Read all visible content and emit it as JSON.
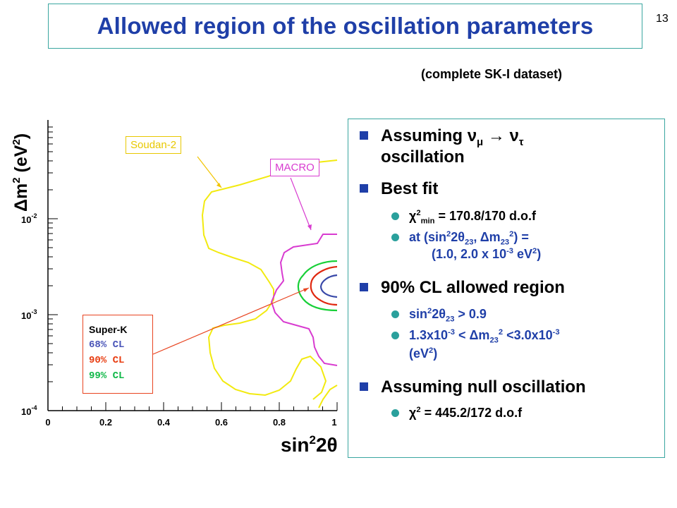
{
  "slide_number": "13",
  "title": "Allowed region of the oscillation parameters",
  "subtitle": "(complete SK-I dataset)",
  "plot": {
    "x_axis_title": "sin",
    "x_axis_title_sup": "2",
    "x_axis_title_rest": "2θ",
    "y_axis_title": "Δm",
    "y_axis_title_sup": "2",
    "y_axis_title_rest": " (eV",
    "y_axis_title_sup2": "2",
    "y_axis_title_end": ")",
    "x_ticks": [
      "0",
      "0.2",
      "0.4",
      "0.6",
      "0.8",
      "1"
    ],
    "y_ticks": [
      {
        "base": "10",
        "exp": "-2"
      },
      {
        "base": "10",
        "exp": "-3"
      },
      {
        "base": "10",
        "exp": "-4"
      }
    ],
    "callouts": {
      "soudan": "Soudan-2",
      "macro": "MACRO"
    },
    "legend": {
      "header": "Super-K",
      "items": [
        "68% CL",
        "90% CL",
        "99% CL"
      ]
    },
    "colors": {
      "soudan": "#f2ea10",
      "macro": "#d83bd0",
      "cl68": "#3848a8",
      "cl90": "#e02810",
      "cl99": "#18d038"
    },
    "log_y": true
  },
  "panel": {
    "b1_a": "Assuming ",
    "b1_nu1": "ν",
    "b1_mu": "μ",
    "b1_arrow": " → ",
    "b1_nu2": "ν",
    "b1_tau": "τ",
    "b1_b": "oscillation",
    "b2": "Best fit",
    "s1_chi": "χ",
    "s1_sup": "2",
    "s1_sub": "min",
    "s1_rest": " = 170.8/170 d.o.f",
    "s2_a": "at (sin",
    "s2_sup1": "2",
    "s2_b": "2θ",
    "s2_sub1": "23",
    "s2_c": ", Δm",
    "s2_sub2": "23",
    "s2_sup2": "2",
    "s2_d": ") =",
    "s2_line2_a": "(1.0, 2.0 x 10",
    "s2_line2_sup": "-3",
    "s2_line2_b": " eV",
    "s2_line2_sup2": "2",
    "s2_line2_c": ")",
    "b3": "90% CL allowed region",
    "s3_a": "sin",
    "s3_sup": "2",
    "s3_b": "2θ",
    "s3_sub": "23",
    "s3_c": " > 0.9",
    "s4_a": "1.3x10",
    "s4_sup1": "-3",
    "s4_b": " < Δm",
    "s4_sub": "23",
    "s4_sup2": "2",
    "s4_c": " <3.0x10",
    "s4_sup3": "-3",
    "s4_line2_a": "(eV",
    "s4_line2_sup": "2",
    "s4_line2_b": ")",
    "b4": "Assuming null oscillation",
    "s5_chi": "χ",
    "s5_sup": "2",
    "s5_rest": " = 445.2/172 d.o.f"
  }
}
